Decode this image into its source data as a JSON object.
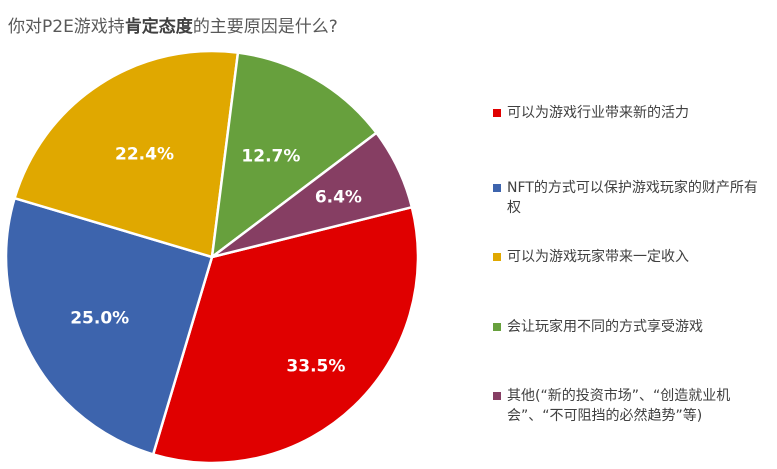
{
  "title": {
    "prefix": "你对P2E游戏持",
    "bold": "肯定态度",
    "suffix": "的主要原因是什么?"
  },
  "chart_data": {
    "type": "pie",
    "slices": [
      {
        "label": "可以为游戏行业带来新的活力",
        "value": 33.5,
        "display": "33.5%",
        "color": "#e00000"
      },
      {
        "label": "NFT的方式可以保护游戏玩家的财产所有权",
        "value": 25.0,
        "display": "25.0%",
        "color": "#3d64ad"
      },
      {
        "label": "可以为游戏玩家带来一定收入",
        "value": 22.4,
        "display": "22.4%",
        "color": "#e0a800"
      },
      {
        "label": "会让玩家用不同的方式享受游戏",
        "value": 12.7,
        "display": "12.7%",
        "color": "#67a03d"
      },
      {
        "label": "其他(“新的投资市场”、“创造就业机会”、“不可阻挡的必然趋势”等)",
        "value": 6.4,
        "display": "6.4%",
        "color": "#863e63"
      }
    ],
    "legend_position": "right"
  }
}
